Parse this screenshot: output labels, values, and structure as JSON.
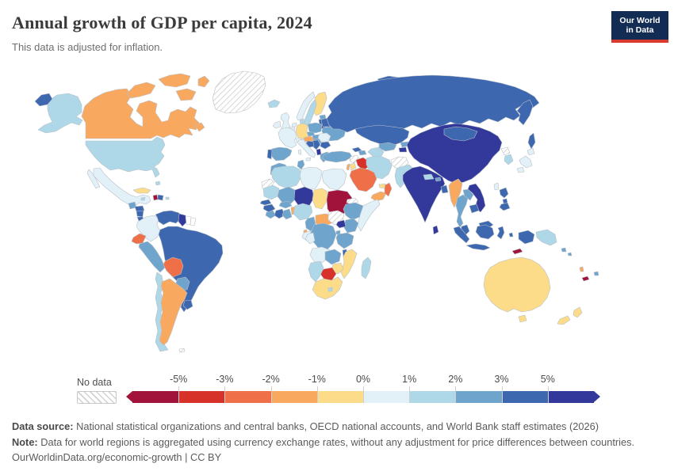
{
  "header": {
    "title": "Annual growth of GDP per capita, 2024",
    "subtitle": "This data is adjusted for inflation.",
    "logo": {
      "line1": "Our World",
      "line2": "in Data"
    }
  },
  "legend": {
    "no_data_label": "No data",
    "tick_labels": [
      "-5%",
      "-3%",
      "-2%",
      "-1%",
      "0%",
      "1%",
      "2%",
      "3%",
      "5%"
    ],
    "palette": [
      "#a2133b",
      "#d73229",
      "#ef7048",
      "#f9a95f",
      "#fcdc89",
      "#e2f1f7",
      "#aed8e8",
      "#6fa4cd",
      "#3d67af",
      "#33399b"
    ],
    "no_data_hatch_color": "#d2d2d2",
    "border_color": "#b9c0c7"
  },
  "footer": {
    "source_label": "Data source:",
    "source_text": " National statistical organizations and central banks, OECD national accounts, and World Bank staff estimates (2026)",
    "note_label": "Note:",
    "note_text": " Data for world regions is aggregated using currency exchange rates, without any adjustment for price differences between countries.",
    "credit": "OurWorldinData.org/economic-growth | CC BY"
  },
  "chart_data": {
    "type": "choropleth-map",
    "title": "Annual growth of GDP per capita, 2024",
    "unit": "%",
    "bucket_labels": [
      "< -5%",
      "-5% to -3%",
      "-3% to -2%",
      "-2% to -1%",
      "-1% to 0%",
      "0% to 1%",
      "1% to 2%",
      "2% to 3%",
      "3% to 5%",
      "> 5%"
    ],
    "countries": [
      {
        "id": "greenland",
        "name": "Greenland",
        "bucket": "no-data"
      },
      {
        "id": "canada",
        "name": "Canada",
        "bucket": 3
      },
      {
        "id": "alaska_usa",
        "name": "United States (Alaska)",
        "bucket": 6
      },
      {
        "id": "chukotka",
        "name": "Russia (Chukotka)",
        "bucket": 8
      },
      {
        "id": "usa",
        "name": "United States",
        "bucket": 6
      },
      {
        "id": "mexico",
        "name": "Mexico",
        "bucket": 5
      },
      {
        "id": "bahamas",
        "name": "Bahamas",
        "bucket": 6
      },
      {
        "id": "cuba",
        "name": "Cuba",
        "bucket": 4
      },
      {
        "id": "jamaica",
        "name": "Jamaica",
        "bucket": 6
      },
      {
        "id": "haiti",
        "name": "Haiti",
        "bucket": 0
      },
      {
        "id": "domrep",
        "name": "Dominican Republic",
        "bucket": 8
      },
      {
        "id": "puertorico",
        "name": "Puerto Rico",
        "bucket": 6
      },
      {
        "id": "guatemala",
        "name": "Guatemala",
        "bucket": 7
      },
      {
        "id": "honduras",
        "name": "Honduras",
        "bucket": 8
      },
      {
        "id": "nicaragua",
        "name": "Nicaragua",
        "bucket": 8
      },
      {
        "id": "costarica",
        "name": "Costa Rica",
        "bucket": 8
      },
      {
        "id": "panama",
        "name": "Panama",
        "bucket": 8
      },
      {
        "id": "colombia",
        "name": "Colombia",
        "bucket": 5
      },
      {
        "id": "venezuela",
        "name": "Venezuela",
        "bucket": 8
      },
      {
        "id": "guyana",
        "name": "Guyana",
        "bucket": 9
      },
      {
        "id": "suriname",
        "name": "Suriname",
        "bucket": "blank"
      },
      {
        "id": "frguiana",
        "name": "French Guiana",
        "bucket": "blank"
      },
      {
        "id": "ecuador",
        "name": "Ecuador",
        "bucket": 2
      },
      {
        "id": "peru",
        "name": "Peru",
        "bucket": 7
      },
      {
        "id": "brazil",
        "name": "Brazil",
        "bucket": 8
      },
      {
        "id": "bolivia",
        "name": "Bolivia",
        "bucket": 2
      },
      {
        "id": "paraguay",
        "name": "Paraguay",
        "bucket": 7
      },
      {
        "id": "chile",
        "name": "Chile",
        "bucket": 6
      },
      {
        "id": "argentina",
        "name": "Argentina",
        "bucket": 3
      },
      {
        "id": "uruguay",
        "name": "Uruguay",
        "bucket": 8
      },
      {
        "id": "falklands",
        "name": "Falkland Islands",
        "bucket": "no-data"
      },
      {
        "id": "iceland",
        "name": "Iceland",
        "bucket": 6
      },
      {
        "id": "novaya",
        "name": "Russia (Novaya Zemlya)",
        "bucket": 8
      },
      {
        "id": "uk",
        "name": "United Kingdom",
        "bucket": 5
      },
      {
        "id": "ireland",
        "name": "Ireland",
        "bucket": 5
      },
      {
        "id": "norway",
        "name": "Norway",
        "bucket": 5
      },
      {
        "id": "sweden",
        "name": "Sweden",
        "bucket": 6
      },
      {
        "id": "finland",
        "name": "Finland",
        "bucket": 4
      },
      {
        "id": "estonia",
        "name": "Estonia",
        "bucket": 7
      },
      {
        "id": "latvia",
        "name": "Latvia",
        "bucket": 8
      },
      {
        "id": "lithuania",
        "name": "Lithuania",
        "bucket": 9
      },
      {
        "id": "denmark",
        "name": "Denmark",
        "bucket": 6
      },
      {
        "id": "germany",
        "name": "Germany",
        "bucket": 4
      },
      {
        "id": "netherlands",
        "name": "Netherlands",
        "bucket": 5
      },
      {
        "id": "belgium",
        "name": "Belgium",
        "bucket": 5
      },
      {
        "id": "france",
        "name": "France",
        "bucket": 5
      },
      {
        "id": "switzerland",
        "name": "Switzerland",
        "bucket": 5
      },
      {
        "id": "austria",
        "name": "Austria",
        "bucket": 3
      },
      {
        "id": "czech",
        "name": "Czechia",
        "bucket": 7
      },
      {
        "id": "slovakia",
        "name": "Slovakia",
        "bucket": 7
      },
      {
        "id": "hungary",
        "name": "Hungary",
        "bucket": 7
      },
      {
        "id": "poland",
        "name": "Poland",
        "bucket": 7
      },
      {
        "id": "belarus",
        "name": "Belarus",
        "bucket": 8
      },
      {
        "id": "ukraine",
        "name": "Ukraine",
        "bucket": 7
      },
      {
        "id": "romania",
        "name": "Romania",
        "bucket": 5
      },
      {
        "id": "bulgaria",
        "name": "Bulgaria",
        "bucket": 8
      },
      {
        "id": "serbia",
        "name": "Serbia",
        "bucket": 8
      },
      {
        "id": "croatia",
        "name": "Croatia and Bosnia",
        "bucket": 8
      },
      {
        "id": "montenegro",
        "name": "Montenegro and Albania",
        "bucket": 9
      },
      {
        "id": "greece",
        "name": "Greece",
        "bucket": 7
      },
      {
        "id": "italy",
        "name": "Italy",
        "bucket": 5
      },
      {
        "id": "spain",
        "name": "Spain",
        "bucket": 7
      },
      {
        "id": "portugal",
        "name": "Portugal",
        "bucket": 8
      },
      {
        "id": "russia",
        "name": "Russia",
        "bucket": 8
      },
      {
        "id": "kazakhstan",
        "name": "Kazakhstan",
        "bucket": 8
      },
      {
        "id": "uzbekistan",
        "name": "Uzbekistan",
        "bucket": 7
      },
      {
        "id": "turkmenistan",
        "name": "Turkmenistan",
        "bucket": 6
      },
      {
        "id": "kyrgyzstan",
        "name": "Kyrgyzstan",
        "bucket": 7
      },
      {
        "id": "tajikistan",
        "name": "Tajikistan",
        "bucket": 9
      },
      {
        "id": "georgia",
        "name": "Georgia",
        "bucket": 8
      },
      {
        "id": "azerbaijan",
        "name": "Azerbaijan",
        "bucket": 7
      },
      {
        "id": "turkey",
        "name": "Turkey",
        "bucket": 7
      },
      {
        "id": "syria",
        "name": "Syria",
        "bucket": "no-data"
      },
      {
        "id": "israel",
        "name": "Israel",
        "bucket": 3
      },
      {
        "id": "jordan",
        "name": "Jordan",
        "bucket": 4
      },
      {
        "id": "iraq",
        "name": "Iraq",
        "bucket": 1
      },
      {
        "id": "iran",
        "name": "Iran",
        "bucket": 6
      },
      {
        "id": "afghanistan",
        "name": "Afghanistan",
        "bucket": "no-data"
      },
      {
        "id": "pakistan",
        "name": "Pakistan",
        "bucket": 6
      },
      {
        "id": "saudi",
        "name": "Saudi Arabia",
        "bucket": 2
      },
      {
        "id": "yemen",
        "name": "Yemen",
        "bucket": 3
      },
      {
        "id": "oman",
        "name": "Oman",
        "bucket": 2
      },
      {
        "id": "uae",
        "name": "United Arab Emirates",
        "bucket": 4
      },
      {
        "id": "india",
        "name": "India",
        "bucket": 9
      },
      {
        "id": "nepal",
        "name": "Nepal",
        "bucket": 6
      },
      {
        "id": "bhutan",
        "name": "Bhutan",
        "bucket": 7
      },
      {
        "id": "bangladesh",
        "name": "Bangladesh",
        "bucket": 8
      },
      {
        "id": "srilanka",
        "name": "Sri Lanka",
        "bucket": 9
      },
      {
        "id": "china",
        "name": "China",
        "bucket": 9
      },
      {
        "id": "mongolia",
        "name": "Mongolia",
        "bucket": 8
      },
      {
        "id": "northkorea",
        "name": "North Korea",
        "bucket": "no-data"
      },
      {
        "id": "southkorea",
        "name": "South Korea",
        "bucket": 6
      },
      {
        "id": "japan",
        "name": "Japan",
        "bucket": 5
      },
      {
        "id": "taiwan",
        "name": "Taiwan",
        "bucket": 5
      },
      {
        "id": "myanmar",
        "name": "Myanmar",
        "bucket": 3
      },
      {
        "id": "thailand",
        "name": "Thailand",
        "bucket": 7
      },
      {
        "id": "laos",
        "name": "Laos",
        "bucket": 7
      },
      {
        "id": "vietnam",
        "name": "Vietnam",
        "bucket": 9
      },
      {
        "id": "cambodia",
        "name": "Cambodia",
        "bucket": 8
      },
      {
        "id": "malaysia",
        "name": "Malaysia",
        "bucket": 8
      },
      {
        "id": "indonesia",
        "name": "Indonesia",
        "bucket": 8
      },
      {
        "id": "philippines",
        "name": "Philippines",
        "bucket": 8
      },
      {
        "id": "timor",
        "name": "Timor-Leste",
        "bucket": 0
      },
      {
        "id": "png",
        "name": "Papua New Guinea",
        "bucket": 6
      },
      {
        "id": "solomon",
        "name": "Solomon Islands",
        "bucket": 7
      },
      {
        "id": "vanuatu",
        "name": "Vanuatu",
        "bucket": 3
      },
      {
        "id": "newcaledonia",
        "name": "New Caledonia",
        "bucket": 0
      },
      {
        "id": "fiji",
        "name": "Fiji",
        "bucket": 7
      },
      {
        "id": "australia",
        "name": "Australia",
        "bucket": 4
      },
      {
        "id": "newzealand",
        "name": "New Zealand",
        "bucket": 4
      },
      {
        "id": "morocco",
        "name": "Morocco",
        "bucket": 7
      },
      {
        "id": "wsahara",
        "name": "Western Sahara",
        "bucket": "no-data"
      },
      {
        "id": "algeria",
        "name": "Algeria",
        "bucket": 6
      },
      {
        "id": "tunisia",
        "name": "Tunisia",
        "bucket": 7
      },
      {
        "id": "libya",
        "name": "Libya",
        "bucket": 5
      },
      {
        "id": "egypt",
        "name": "Egypt",
        "bucket": 5
      },
      {
        "id": "mauritania",
        "name": "Mauritania",
        "bucket": 6
      },
      {
        "id": "mali",
        "name": "Mali",
        "bucket": 7
      },
      {
        "id": "niger",
        "name": "Niger",
        "bucket": 9
      },
      {
        "id": "chad",
        "name": "Chad",
        "bucket": 4
      },
      {
        "id": "sudan",
        "name": "Sudan",
        "bucket": 0
      },
      {
        "id": "eritrea",
        "name": "Eritrea",
        "bucket": "no-data"
      },
      {
        "id": "senegal",
        "name": "Senegal",
        "bucket": 8
      },
      {
        "id": "guinea",
        "name": "Guinea",
        "bucket": 8
      },
      {
        "id": "sierraleone",
        "name": "Sierra Leone and Liberia",
        "bucket": 7
      },
      {
        "id": "ivorycoast",
        "name": "Cote d'Ivoire",
        "bucket": 8
      },
      {
        "id": "ghana",
        "name": "Ghana",
        "bucket": 7
      },
      {
        "id": "benin",
        "name": "Togo and Benin",
        "bucket": 3
      },
      {
        "id": "burkina",
        "name": "Burkina Faso",
        "bucket": 7
      },
      {
        "id": "nigeria",
        "name": "Nigeria",
        "bucket": 6
      },
      {
        "id": "cameroon",
        "name": "Cameroon",
        "bucket": 7
      },
      {
        "id": "eqguinea",
        "name": "Equatorial Guinea",
        "bucket": 3
      },
      {
        "id": "gabon",
        "name": "Gabon",
        "bucket": 5
      },
      {
        "id": "car",
        "name": "Central African Republic",
        "bucket": 3
      },
      {
        "id": "southsudan",
        "name": "South Sudan",
        "bucket": "no-data"
      },
      {
        "id": "ethiopia",
        "name": "Ethiopia",
        "bucket": 7
      },
      {
        "id": "somalia",
        "name": "Somalia",
        "bucket": 5
      },
      {
        "id": "kenya",
        "name": "Kenya",
        "bucket": 7
      },
      {
        "id": "uganda",
        "name": "Uganda",
        "bucket": 9
      },
      {
        "id": "rwanda",
        "name": "Rwanda and Burundi",
        "bucket": 7
      },
      {
        "id": "drc",
        "name": "Democratic Republic of Congo",
        "bucket": 7
      },
      {
        "id": "congo",
        "name": "Congo",
        "bucket": 5
      },
      {
        "id": "tanzania",
        "name": "Tanzania",
        "bucket": 7
      },
      {
        "id": "angola",
        "name": "Angola",
        "bucket": 5
      },
      {
        "id": "zambia",
        "name": "Zambia",
        "bucket": 7
      },
      {
        "id": "malawi",
        "name": "Malawi",
        "bucket": 8
      },
      {
        "id": "mozambique",
        "name": "Mozambique",
        "bucket": 4
      },
      {
        "id": "zimbabwe",
        "name": "Zimbabwe",
        "bucket": 4
      },
      {
        "id": "botswana",
        "name": "Botswana",
        "bucket": 1
      },
      {
        "id": "namibia",
        "name": "Namibia",
        "bucket": 6
      },
      {
        "id": "southafrica",
        "name": "South Africa",
        "bucket": 4
      },
      {
        "id": "lesotho",
        "name": "Lesotho",
        "bucket": 6
      },
      {
        "id": "madagascar",
        "name": "Madagascar",
        "bucket": 6
      }
    ]
  }
}
